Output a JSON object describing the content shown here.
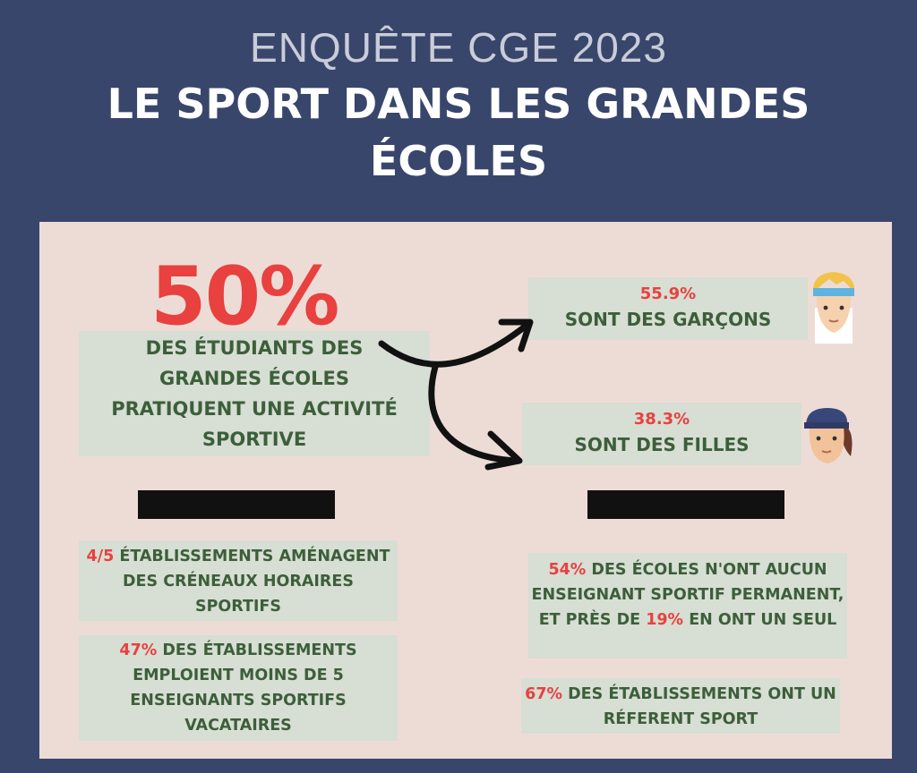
{
  "header": {
    "subtitle": "ENQUÊTE CGE 2023",
    "title": "LE SPORT DANS LES GRANDES ÉCOLES"
  },
  "main_stat": {
    "value": "50%",
    "text": "DES ÉTUDIANTS DES GRANDES ÉCOLES PRATIQUENT UNE ACTIVITÉ SPORTIVE"
  },
  "boys": {
    "value": "55.9%",
    "label": "SONT DES GARÇONS"
  },
  "girls": {
    "value": "38.3%",
    "label": "SONT DES FILLES"
  },
  "stat1": {
    "value": "4/5",
    "text": "ÉTABLISSEMENTS AMÉNAGENT DES CRÉNEAUX HORAIRES SPORTIFS"
  },
  "stat2": {
    "value": "47%",
    "text": "DES ÉTABLISSEMENTS EMPLOIENT MOINS DE 5 ENSEIGNANTS SPORTIFS VACATAIRES"
  },
  "stat3": {
    "value": "54%",
    "text_a": "DES ÉCOLES N'ONT AUCUN ENSEIGNANT SPORTIF PERMANENT, ET PRÈS DE",
    "value_b": "19%",
    "text_b": "EN ONT UN SEUL"
  },
  "stat4": {
    "value": "67%",
    "text": "DES ÉTABLISSEMENTS ONT UN RÉFERENT SPORT"
  },
  "colors": {
    "background": "#39466b",
    "panel": "#eddcd6",
    "box": "#d7ded4",
    "accent": "#e8413f",
    "text_green": "#3c5f3a"
  },
  "icons": [
    "boy-avatar-icon",
    "girl-avatar-icon",
    "arrow-icon"
  ]
}
